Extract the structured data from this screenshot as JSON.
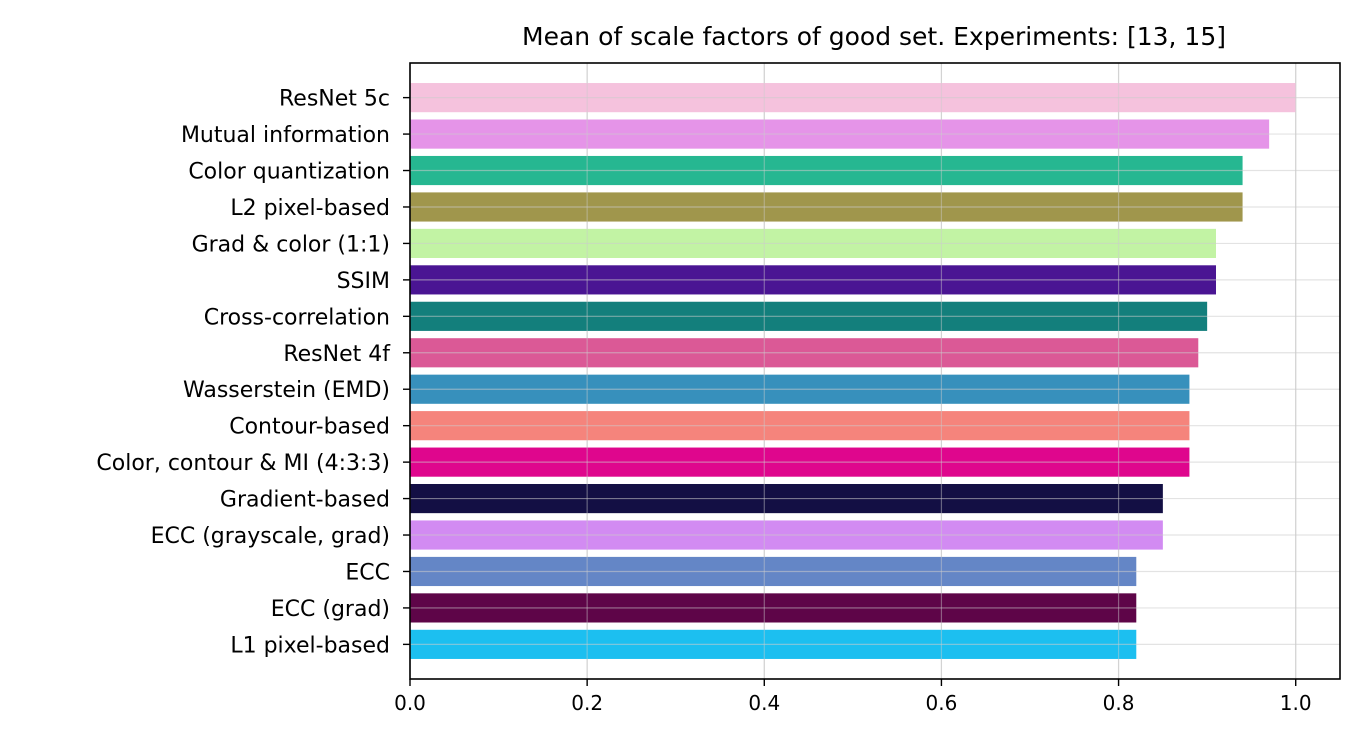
{
  "chart_data": {
    "type": "bar",
    "orientation": "horizontal",
    "title": "Mean of scale factors of good set. Experiments: [13, 15]",
    "xlabel": "",
    "ylabel": "",
    "xlim": [
      0,
      1.05
    ],
    "xticks": [
      0.0,
      0.2,
      0.4,
      0.6,
      0.8,
      1.0
    ],
    "xtick_labels": [
      "0.0",
      "0.2",
      "0.4",
      "0.6",
      "0.8",
      "1.0"
    ],
    "grid": true,
    "categories": [
      "ResNet 5c",
      "Mutual information",
      "Color quantization",
      "L2 pixel-based",
      "Grad & color (1:1)",
      "SSIM",
      "Cross-correlation",
      "ResNet 4f",
      "Wasserstein (EMD)",
      "Contour-based",
      "Color, contour & MI (4:3:3)",
      "Gradient-based",
      "ECC (grayscale, grad)",
      "ECC",
      "ECC (grad)",
      "L1 pixel-based"
    ],
    "values": [
      1.0,
      0.97,
      0.94,
      0.94,
      0.91,
      0.91,
      0.9,
      0.89,
      0.88,
      0.88,
      0.88,
      0.85,
      0.85,
      0.82,
      0.82,
      0.82
    ],
    "colors": [
      "#f5c2dd",
      "#e594e8",
      "#26b791",
      "#a0964c",
      "#c2f3a4",
      "#4a1593",
      "#137f7c",
      "#db5996",
      "#3790bc",
      "#f5847c",
      "#df068d",
      "#130f44",
      "#d28bf2",
      "#6486c6",
      "#5e0548",
      "#1cbff0"
    ]
  }
}
